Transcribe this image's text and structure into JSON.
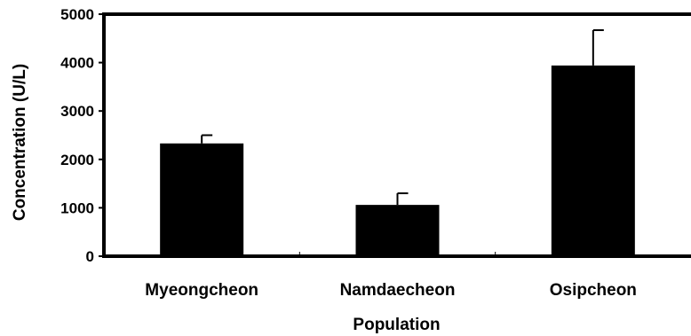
{
  "chart_data": {
    "type": "bar",
    "title": "",
    "xlabel": "Population",
    "ylabel": "Concentration (U/L)",
    "categories": [
      "Myeongcheon",
      "Namdaecheon",
      "Osipcheon"
    ],
    "values": [
      2330,
      1060,
      3940
    ],
    "error_upper": [
      170,
      240,
      730
    ],
    "ylim": [
      0,
      5000
    ],
    "yticks": [
      0,
      1000,
      2000,
      3000,
      4000,
      5000
    ],
    "ytick_labels": [
      "0",
      "1000",
      "2000",
      "3000",
      "4000",
      "5000"
    ],
    "grid": false,
    "legend": "none",
    "bar_color": "#000000"
  }
}
